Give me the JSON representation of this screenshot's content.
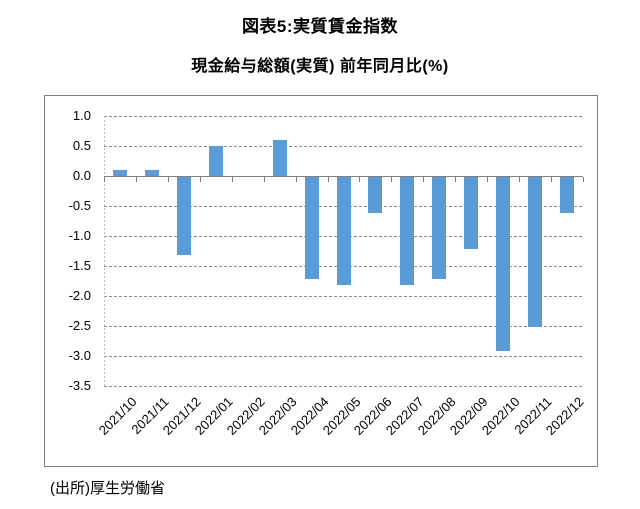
{
  "header": {
    "title": "図表5:実質賃金指数",
    "subtitle": "現金給与総額(実質) 前年同月比(%)"
  },
  "footer": {
    "source": "(出所)厚生労働省"
  },
  "chart_data": {
    "type": "bar",
    "title": "図表5:実質賃金指数",
    "subtitle": "現金給与総額(実質) 前年同月比(%)",
    "categories": [
      "2021/10",
      "2021/11",
      "2021/12",
      "2022/01",
      "2022/02",
      "2022/03",
      "2022/04",
      "2022/05",
      "2022/06",
      "2022/07",
      "2022/08",
      "2022/09",
      "2022/10",
      "2022/11",
      "2022/12"
    ],
    "values": [
      0.1,
      0.1,
      -1.3,
      0.5,
      0.0,
      0.6,
      -1.7,
      -1.8,
      -0.6,
      -1.8,
      -1.7,
      -1.2,
      -2.9,
      -2.5,
      -0.6
    ],
    "xlabel": "",
    "ylabel": "",
    "ylim": [
      -3.5,
      1.0
    ],
    "ytick_step": 0.5,
    "yticks": [
      "1.0",
      "0.5",
      "0.0",
      "-0.5",
      "-1.0",
      "-1.5",
      "-2.0",
      "-2.5",
      "-3.0",
      "-3.5"
    ],
    "x_label_rotation": 45,
    "grid": true,
    "legend": "none",
    "bar_color": "#5B9BD5",
    "frame_color": "#7f7f7f",
    "gridline_color": "#8c8c8c"
  }
}
